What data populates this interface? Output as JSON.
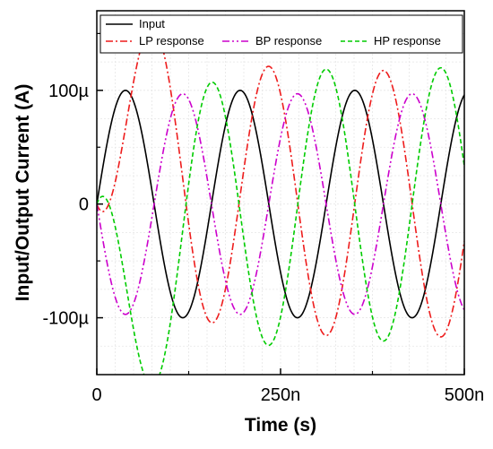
{
  "chart_data": {
    "type": "line",
    "title": "",
    "xlabel": "Time (s)",
    "ylabel": "Input/Output Current (A)",
    "xlim": [
      0,
      500
    ],
    "ylim": [
      -150,
      170
    ],
    "x_ticks": [
      {
        "value": 0,
        "label": "0"
      },
      {
        "value": 250,
        "label": "250n"
      },
      {
        "value": 500,
        "label": "500n"
      }
    ],
    "y_ticks": [
      {
        "value": 100,
        "label": "100µ"
      },
      {
        "value": 0,
        "label": "0"
      },
      {
        "value": -100,
        "label": "-100µ"
      }
    ],
    "x_unit": "ns",
    "y_unit": "µA",
    "grid": true,
    "legend_position": "top",
    "series": [
      {
        "name": "Input",
        "color": "#000000",
        "dash": "solid",
        "amplitude": 100,
        "period": 156,
        "phase_deg": 0,
        "envelope_tau": 0,
        "peak_x": 40
      },
      {
        "name": "LP response",
        "color": "#ee1c1c",
        "dash": "dashdot",
        "amplitude": 117,
        "period": 156,
        "phase_deg": -90,
        "envelope_tau": 70,
        "peak_x": 235
      },
      {
        "name": "BP response",
        "color": "#cc00cc",
        "dash": "dashdotdot",
        "amplitude": 97,
        "period": 156,
        "phase_deg": 180,
        "envelope_tau": 70,
        "peak_x": 272
      },
      {
        "name": "HP response",
        "color": "#00cc00",
        "dash": "dash",
        "amplitude": 120,
        "period": 156,
        "phase_deg": 90,
        "envelope_tau": 70,
        "peak_x": 315
      }
    ]
  }
}
